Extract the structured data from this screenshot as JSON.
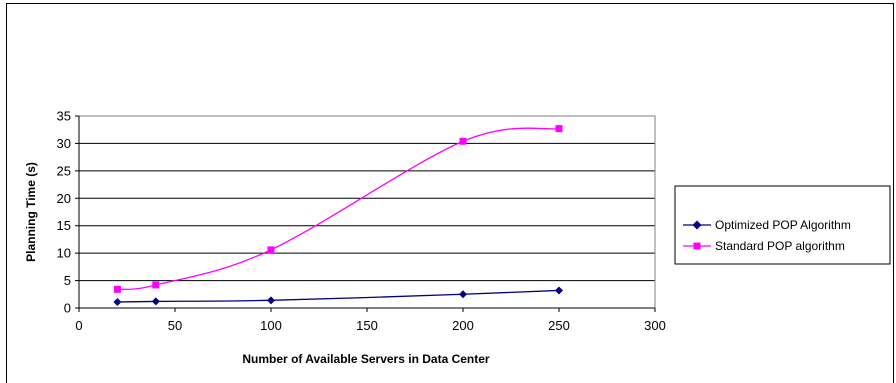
{
  "chart_data": {
    "type": "line",
    "title": "",
    "xlabel": "Number of Available Servers in Data Center",
    "ylabel": "Planning Time (s)",
    "xlim": [
      0,
      300
    ],
    "ylim": [
      0,
      35
    ],
    "x_ticks": [
      "0",
      "50",
      "100",
      "150",
      "200",
      "250",
      "300"
    ],
    "y_ticks": [
      "0",
      "5",
      "10",
      "15",
      "20",
      "25",
      "30",
      "35"
    ],
    "grid": "horizontal",
    "legend_position": "right",
    "series": [
      {
        "name": "Optimized POP Algorithm",
        "color": "#000080",
        "marker": "diamond",
        "points": [
          [
            20,
            1.1
          ],
          [
            40,
            1.2
          ],
          [
            100,
            1.4
          ],
          [
            200,
            2.5
          ],
          [
            250,
            3.2
          ]
        ]
      },
      {
        "name": "Standard POP algorithm",
        "color": "#ff00ff",
        "marker": "square",
        "points": [
          [
            20,
            3.4
          ],
          [
            40,
            4.2
          ],
          [
            100,
            10.6
          ],
          [
            200,
            30.4
          ],
          [
            250,
            32.7
          ]
        ]
      }
    ]
  }
}
